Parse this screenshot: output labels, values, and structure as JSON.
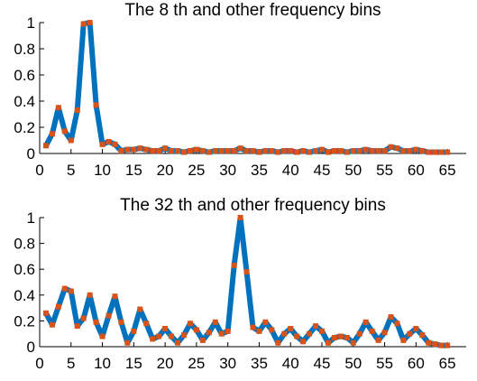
{
  "chart_data": [
    {
      "type": "line",
      "title": "The 8 th and other frequency bins",
      "xlim": [
        0,
        68
      ],
      "ylim": [
        0,
        1
      ],
      "xticks": [
        0,
        5,
        10,
        15,
        20,
        25,
        30,
        35,
        40,
        45,
        50,
        55,
        60,
        65
      ],
      "yticks": [
        0,
        0.2,
        0.4,
        0.6,
        0.8,
        1
      ],
      "xtick_labels": [
        "0",
        "5",
        "10",
        "15",
        "20",
        "25",
        "30",
        "35",
        "40",
        "45",
        "50",
        "55",
        "60",
        "65"
      ],
      "ytick_labels": [
        "0",
        "0.2",
        "0.4",
        "0.6",
        "0.8",
        "1"
      ],
      "series": [
        {
          "style": "line",
          "color": "#0072BD",
          "x": [
            1,
            2,
            3,
            4,
            5,
            6,
            7,
            8,
            9,
            10,
            11,
            12,
            13,
            14,
            15,
            16,
            17,
            18,
            19,
            20,
            21,
            22,
            23,
            24,
            25,
            26,
            27,
            28,
            29,
            30,
            31,
            32,
            33,
            34,
            35,
            36,
            37,
            38,
            39,
            40,
            41,
            42,
            43,
            44,
            45,
            46,
            47,
            48,
            49,
            50,
            51,
            52,
            53,
            54,
            55,
            56,
            57,
            58,
            59,
            60,
            61,
            62,
            63,
            64,
            65
          ],
          "y": [
            0.06,
            0.15,
            0.35,
            0.17,
            0.1,
            0.33,
            0.99,
            1.0,
            0.37,
            0.07,
            0.09,
            0.07,
            0.02,
            0.03,
            0.03,
            0.04,
            0.03,
            0.02,
            0.02,
            0.04,
            0.02,
            0.02,
            0.01,
            0.02,
            0.03,
            0.02,
            0.01,
            0.02,
            0.02,
            0.02,
            0.02,
            0.04,
            0.02,
            0.02,
            0.01,
            0.02,
            0.02,
            0.01,
            0.02,
            0.02,
            0.01,
            0.02,
            0.01,
            0.02,
            0.03,
            0.01,
            0.02,
            0.02,
            0.01,
            0.02,
            0.02,
            0.03,
            0.02,
            0.02,
            0.02,
            0.05,
            0.04,
            0.02,
            0.02,
            0.03,
            0.02,
            0.01,
            0.01,
            0.01,
            0.01
          ]
        },
        {
          "style": "markers",
          "color": "#D95319",
          "x": [
            1,
            2,
            3,
            4,
            5,
            6,
            7,
            8,
            9,
            10,
            11,
            12,
            13,
            14,
            15,
            16,
            17,
            18,
            19,
            20,
            21,
            22,
            23,
            24,
            25,
            26,
            27,
            28,
            29,
            30,
            31,
            32,
            33,
            34,
            35,
            36,
            37,
            38,
            39,
            40,
            41,
            42,
            43,
            44,
            45,
            46,
            47,
            48,
            49,
            50,
            51,
            52,
            53,
            54,
            55,
            56,
            57,
            58,
            59,
            60,
            61,
            62,
            63,
            64,
            65
          ],
          "y": [
            0.06,
            0.15,
            0.35,
            0.17,
            0.1,
            0.33,
            0.99,
            1.0,
            0.37,
            0.07,
            0.09,
            0.07,
            0.02,
            0.03,
            0.03,
            0.04,
            0.03,
            0.02,
            0.02,
            0.04,
            0.02,
            0.02,
            0.01,
            0.02,
            0.03,
            0.02,
            0.01,
            0.02,
            0.02,
            0.02,
            0.02,
            0.04,
            0.02,
            0.02,
            0.01,
            0.02,
            0.02,
            0.01,
            0.02,
            0.02,
            0.01,
            0.02,
            0.01,
            0.02,
            0.03,
            0.01,
            0.02,
            0.02,
            0.01,
            0.02,
            0.02,
            0.03,
            0.02,
            0.02,
            0.02,
            0.05,
            0.04,
            0.02,
            0.02,
            0.03,
            0.02,
            0.01,
            0.01,
            0.01,
            0.01
          ]
        }
      ]
    },
    {
      "type": "line",
      "title": "The 32 th and other frequency bins",
      "xlim": [
        0,
        68
      ],
      "ylim": [
        0,
        1
      ],
      "xticks": [
        0,
        5,
        10,
        15,
        20,
        25,
        30,
        35,
        40,
        45,
        50,
        55,
        60,
        65
      ],
      "yticks": [
        0,
        0.2,
        0.4,
        0.6,
        0.8,
        1
      ],
      "xtick_labels": [
        "0",
        "5",
        "10",
        "15",
        "20",
        "25",
        "30",
        "35",
        "40",
        "45",
        "50",
        "55",
        "60",
        "65"
      ],
      "ytick_labels": [
        "0",
        "0.2",
        "0.4",
        "0.6",
        "0.8",
        "1"
      ],
      "series": [
        {
          "style": "line",
          "color": "#0072BD",
          "x": [
            1,
            2,
            3,
            4,
            5,
            6,
            7,
            8,
            9,
            10,
            11,
            12,
            13,
            14,
            15,
            16,
            17,
            18,
            19,
            20,
            21,
            22,
            23,
            24,
            25,
            26,
            27,
            28,
            29,
            30,
            31,
            32,
            33,
            34,
            35,
            36,
            37,
            38,
            39,
            40,
            41,
            42,
            43,
            44,
            45,
            46,
            47,
            48,
            49,
            50,
            51,
            52,
            53,
            54,
            55,
            56,
            57,
            58,
            59,
            60,
            61,
            62,
            63,
            64,
            65
          ],
          "y": [
            0.26,
            0.17,
            0.31,
            0.45,
            0.43,
            0.16,
            0.22,
            0.4,
            0.19,
            0.08,
            0.24,
            0.39,
            0.19,
            0.03,
            0.12,
            0.29,
            0.18,
            0.06,
            0.08,
            0.14,
            0.08,
            0.03,
            0.09,
            0.18,
            0.13,
            0.05,
            0.11,
            0.19,
            0.1,
            0.12,
            0.63,
            1.0,
            0.58,
            0.15,
            0.12,
            0.19,
            0.13,
            0.03,
            0.1,
            0.14,
            0.08,
            0.04,
            0.1,
            0.16,
            0.12,
            0.03,
            0.07,
            0.08,
            0.07,
            0.03,
            0.1,
            0.19,
            0.12,
            0.05,
            0.11,
            0.23,
            0.18,
            0.05,
            0.1,
            0.14,
            0.09,
            0.03,
            0.02,
            0.01,
            0.01
          ]
        },
        {
          "style": "markers",
          "color": "#D95319",
          "x": [
            1,
            2,
            3,
            4,
            5,
            6,
            7,
            8,
            9,
            10,
            11,
            12,
            13,
            14,
            15,
            16,
            17,
            18,
            19,
            20,
            21,
            22,
            23,
            24,
            25,
            26,
            27,
            28,
            29,
            30,
            31,
            32,
            33,
            34,
            35,
            36,
            37,
            38,
            39,
            40,
            41,
            42,
            43,
            44,
            45,
            46,
            47,
            48,
            49,
            50,
            51,
            52,
            53,
            54,
            55,
            56,
            57,
            58,
            59,
            60,
            61,
            62,
            63,
            64,
            65
          ],
          "y": [
            0.26,
            0.17,
            0.31,
            0.45,
            0.43,
            0.16,
            0.22,
            0.4,
            0.19,
            0.08,
            0.24,
            0.39,
            0.19,
            0.03,
            0.12,
            0.29,
            0.18,
            0.06,
            0.08,
            0.14,
            0.08,
            0.03,
            0.09,
            0.18,
            0.13,
            0.05,
            0.11,
            0.19,
            0.1,
            0.12,
            0.63,
            1.0,
            0.58,
            0.15,
            0.12,
            0.19,
            0.13,
            0.03,
            0.1,
            0.14,
            0.08,
            0.04,
            0.1,
            0.16,
            0.12,
            0.03,
            0.07,
            0.08,
            0.07,
            0.03,
            0.1,
            0.19,
            0.12,
            0.05,
            0.11,
            0.23,
            0.18,
            0.05,
            0.1,
            0.14,
            0.09,
            0.03,
            0.02,
            0.01,
            0.01
          ]
        }
      ]
    }
  ]
}
